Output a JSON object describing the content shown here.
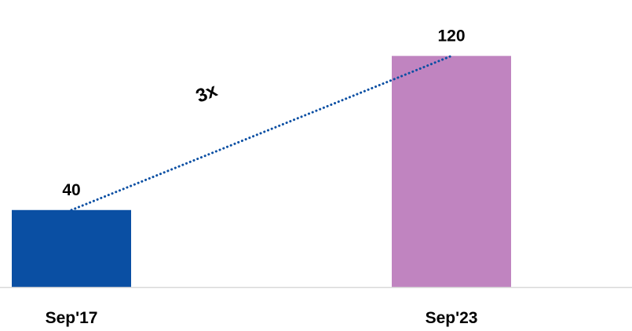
{
  "chart_data": {
    "type": "bar",
    "title": "",
    "xlabel": "",
    "ylabel": "",
    "categories": [
      "Sep'17",
      "Sep'23"
    ],
    "values": [
      40,
      120
    ],
    "value_labels": [
      "40",
      "120"
    ],
    "ylim": [
      0,
      136
    ],
    "grid": false,
    "legend": "none",
    "colors": [
      "#0a4fa3",
      "#c084c0"
    ],
    "trend_line": {
      "style": "dotted",
      "color": "#0a4fa3",
      "from_category": "Sep'17",
      "to_category": "Sep'23"
    },
    "annotation": {
      "text": "3x"
    },
    "axis_color": "#d9d9d9"
  }
}
